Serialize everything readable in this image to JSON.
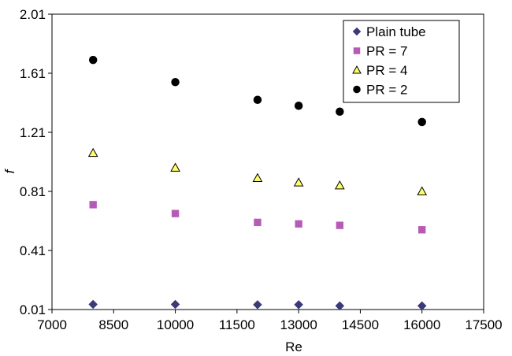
{
  "chart_data": {
    "type": "scatter",
    "xlabel": "Re",
    "ylabel": "f",
    "xlim": [
      7000,
      17500
    ],
    "ylim": [
      0.01,
      2.01
    ],
    "xticks": [
      7000,
      8500,
      10000,
      11500,
      13000,
      14500,
      16000,
      17500
    ],
    "yticks": [
      0.01,
      0.41,
      0.81,
      1.21,
      1.61,
      2.01
    ],
    "xtick_labels": [
      "7000",
      "8500",
      "10000",
      "11500",
      "13000",
      "14500",
      "16000",
      "17500"
    ],
    "ytick_labels": [
      "0.01",
      "0.41",
      "0.81",
      "1.21",
      "1.61",
      "2.01"
    ],
    "grid": false,
    "legend_position": "top-right",
    "series": [
      {
        "name": "Plain tube",
        "marker": "diamond",
        "color": "#3a3a78",
        "x": [
          8000,
          10000,
          12000,
          13000,
          14000,
          16000
        ],
        "y": [
          0.045,
          0.045,
          0.043,
          0.043,
          0.035,
          0.035
        ]
      },
      {
        "name": "PR = 7",
        "marker": "square",
        "color": "#b65ab8",
        "x": [
          8000,
          10000,
          12000,
          13000,
          14000,
          16000
        ],
        "y": [
          0.72,
          0.66,
          0.6,
          0.59,
          0.58,
          0.55
        ]
      },
      {
        "name": "PR = 4",
        "marker": "triangle",
        "color": "#ffff66",
        "x": [
          8000,
          10000,
          12000,
          13000,
          14000,
          16000
        ],
        "y": [
          1.07,
          0.97,
          0.9,
          0.87,
          0.85,
          0.81
        ]
      },
      {
        "name": "PR = 2",
        "marker": "circle",
        "color": "#000000",
        "x": [
          8000,
          10000,
          12000,
          13000,
          14000,
          16000
        ],
        "y": [
          1.7,
          1.55,
          1.43,
          1.39,
          1.35,
          1.28
        ]
      }
    ]
  }
}
